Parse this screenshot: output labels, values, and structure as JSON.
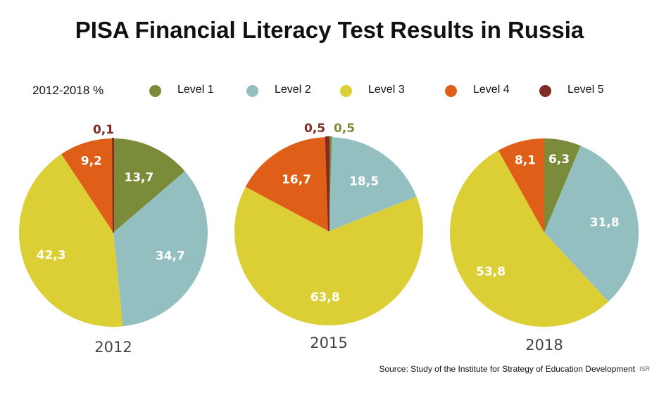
{
  "title": "PISA Financial Literacy Test Results in Russia",
  "subtitle": "2012-2018 %",
  "source": "Source: Study of the Institute for Strategy of Education Development",
  "source_icon": "ISR-logo-icon",
  "chart_data": {
    "type": "pie",
    "legend": [
      {
        "name": "Level 1",
        "color": "#7a8c3a"
      },
      {
        "name": "Level 2",
        "color": "#93bfc0"
      },
      {
        "name": "Level 3",
        "color": "#dccf35"
      },
      {
        "name": "Level 4",
        "color": "#df5f19"
      },
      {
        "name": "Level 5",
        "color": "#7e2c24"
      }
    ],
    "pies": [
      {
        "year": "2012",
        "slices": [
          {
            "level": "Level 1",
            "value": 13.7,
            "label": "13,7"
          },
          {
            "level": "Level 2",
            "value": 34.7,
            "label": "34,7"
          },
          {
            "level": "Level 3",
            "value": 42.3,
            "label": "42,3"
          },
          {
            "level": "Level 4",
            "value": 9.2,
            "label": "9,2"
          },
          {
            "level": "Level 5",
            "value": 0.1,
            "label": "0,1"
          }
        ]
      },
      {
        "year": "2015",
        "slices": [
          {
            "level": "Level 1",
            "value": 0.5,
            "label": "0,5"
          },
          {
            "level": "Level 2",
            "value": 18.5,
            "label": "18,5"
          },
          {
            "level": "Level 3",
            "value": 63.8,
            "label": "63,8"
          },
          {
            "level": "Level 4",
            "value": 16.7,
            "label": "16,7"
          },
          {
            "level": "Level 5",
            "value": 0.5,
            "label": "0,5"
          }
        ]
      },
      {
        "year": "2018",
        "slices": [
          {
            "level": "Level 1",
            "value": 6.3,
            "label": "6,3"
          },
          {
            "level": "Level 2",
            "value": 31.8,
            "label": "31,8"
          },
          {
            "level": "Level 3",
            "value": 53.8,
            "label": "53,8"
          },
          {
            "level": "Level 4",
            "value": 8.1,
            "label": "8,1"
          }
        ]
      }
    ]
  }
}
